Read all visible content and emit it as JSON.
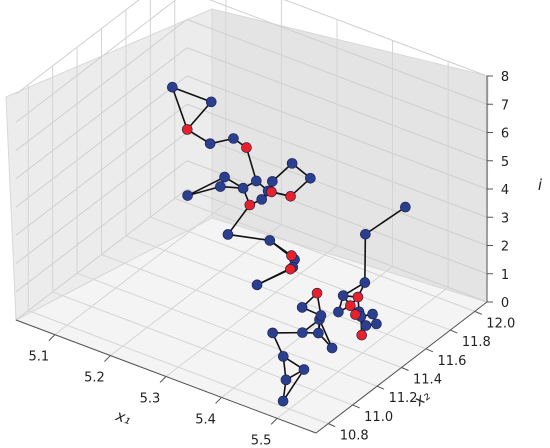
{
  "chart_data": {
    "type": "scatter3d",
    "title": "",
    "xlabel": "x₁",
    "ylabel": "x₂",
    "zlabel": "i",
    "xlim": [
      5.03,
      5.57
    ],
    "ylim": [
      10.7,
      12.1
    ],
    "zlim": [
      0,
      8
    ],
    "x_ticks": [
      "5.1",
      "5.2",
      "5.3",
      "5.4",
      "5.5"
    ],
    "y_ticks": [
      "10.8",
      "11.0",
      "11.2",
      "11.4",
      "11.6",
      "11.8",
      "12.0"
    ],
    "z_ticks": [
      "0",
      "1",
      "2",
      "3",
      "4",
      "5",
      "6",
      "7",
      "8"
    ],
    "grid": true,
    "marker_colors": {
      "blue": "#2b3f8f",
      "red": "#e8202a"
    },
    "series": [
      {
        "color": "blue",
        "points": [
          [
            5.03,
            11.98,
            4
          ],
          [
            5.1,
            11.98,
            4
          ],
          [
            5.12,
            11.88,
            3
          ],
          [
            5.14,
            11.98,
            3
          ],
          [
            5.19,
            11.94,
            2
          ],
          [
            5.21,
            11.98,
            2
          ],
          [
            5.22,
            11.9,
            2
          ],
          [
            5.25,
            11.96,
            3
          ],
          [
            5.13,
            11.65,
            2
          ],
          [
            5.19,
            11.68,
            3
          ],
          [
            5.2,
            11.6,
            3
          ],
          [
            5.23,
            11.65,
            3
          ],
          [
            5.27,
            11.62,
            3
          ],
          [
            5.24,
            11.48,
            2
          ],
          [
            5.3,
            11.55,
            2
          ],
          [
            5.31,
            11.4,
            1
          ],
          [
            5.36,
            11.48,
            2
          ],
          [
            5.37,
            11.42,
            2
          ],
          [
            5.4,
            11.36,
            1
          ],
          [
            5.44,
            11.32,
            1
          ],
          [
            5.46,
            11.22,
            1
          ],
          [
            5.48,
            11.15,
            2
          ],
          [
            5.52,
            11.15,
            3
          ],
          [
            5.54,
            11.02,
            3
          ],
          [
            5.36,
            11.3,
            0
          ],
          [
            5.41,
            11.16,
            0
          ],
          [
            5.45,
            11.0,
            0
          ],
          [
            5.48,
            10.84,
            0
          ],
          [
            5.5,
            10.92,
            1
          ],
          [
            5.44,
            11.18,
            1
          ],
          [
            5.5,
            11.15,
            1
          ],
          [
            5.52,
            11.28,
            2
          ],
          [
            5.54,
            11.3,
            2
          ],
          [
            5.53,
            11.25,
            2
          ],
          [
            5.55,
            11.2,
            2
          ],
          [
            5.56,
            11.24,
            2
          ],
          [
            5.57,
            11.1,
            4
          ],
          [
            5.34,
            11.7,
            4
          ],
          [
            5.45,
            11.65,
            3
          ],
          [
            5.5,
            11.75,
            4
          ]
        ]
      },
      {
        "color": "red",
        "points": [
          [
            5.07,
            11.92,
            3
          ],
          [
            5.17,
            11.95,
            3
          ],
          [
            5.22,
            11.75,
            2
          ],
          [
            5.27,
            11.7,
            3
          ],
          [
            5.3,
            11.72,
            3
          ],
          [
            5.35,
            11.5,
            2
          ],
          [
            5.37,
            11.4,
            2
          ],
          [
            5.44,
            11.3,
            2
          ],
          [
            5.5,
            11.3,
            2
          ],
          [
            5.52,
            11.25,
            2
          ],
          [
            5.54,
            11.18,
            3
          ],
          [
            5.56,
            11.12,
            2
          ]
        ]
      }
    ]
  }
}
